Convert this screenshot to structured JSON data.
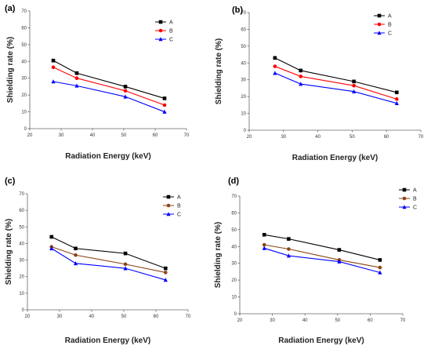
{
  "chart_data": [
    {
      "type": "line",
      "panel_label": "(a)",
      "xlabel": "Radiation Energy (keV)",
      "ylabel": "Shielding rate (%)",
      "xlim": [
        20,
        70
      ],
      "ylim": [
        0,
        70
      ],
      "xticks": [
        "20",
        "30",
        "40",
        "50",
        "60",
        "70"
      ],
      "yticks": [
        "0",
        "10",
        "20",
        "30",
        "40",
        "50",
        "60",
        "70"
      ],
      "x": [
        27.5,
        35,
        50.5,
        63
      ],
      "legend_position": "top-right",
      "grid": false,
      "series": [
        {
          "name": "A",
          "color": "#000000",
          "marker": "square",
          "values": [
            40.5,
            33,
            25,
            18
          ]
        },
        {
          "name": "B",
          "color": "#ff0000",
          "marker": "circle",
          "values": [
            36.5,
            30,
            22.5,
            14
          ]
        },
        {
          "name": "C",
          "color": "#0000ff",
          "marker": "triangle",
          "values": [
            28,
            25.5,
            19,
            10
          ]
        }
      ]
    },
    {
      "type": "line",
      "panel_label": "(b)",
      "xlabel": "Radiation Energy (keV)",
      "ylabel": "Shielding rate (%)",
      "xlim": [
        20,
        70
      ],
      "ylim": [
        0,
        70
      ],
      "xticks": [
        "20",
        "30",
        "40",
        "50",
        "60",
        "70"
      ],
      "yticks": [
        "0",
        "10",
        "20",
        "30",
        "40",
        "50",
        "60",
        "70"
      ],
      "x": [
        27.5,
        35,
        50.5,
        63
      ],
      "legend_position": "top-right",
      "grid": false,
      "series": [
        {
          "name": "A",
          "color": "#000000",
          "marker": "square",
          "values": [
            43,
            35.5,
            29,
            22.5
          ]
        },
        {
          "name": "B",
          "color": "#ff0000",
          "marker": "circle",
          "values": [
            38,
            32,
            26.5,
            18.5
          ]
        },
        {
          "name": "C",
          "color": "#0000ff",
          "marker": "triangle",
          "values": [
            34,
            27.5,
            23,
            16
          ]
        }
      ]
    },
    {
      "type": "line",
      "panel_label": "(c)",
      "xlabel": "Radiation Energy (keV)",
      "ylabel": "Shielding rate (%)",
      "xlim": [
        20,
        70
      ],
      "ylim": [
        0,
        70
      ],
      "xticks": [
        "20",
        "30",
        "40",
        "50",
        "60",
        "70"
      ],
      "yticks": [
        "0",
        "10",
        "20",
        "30",
        "40",
        "50",
        "60",
        "70"
      ],
      "x": [
        27.5,
        35,
        50.5,
        63
      ],
      "legend_position": "top-right",
      "grid": false,
      "series": [
        {
          "name": "A",
          "color": "#000000",
          "marker": "square",
          "values": [
            44,
            37,
            34,
            25
          ]
        },
        {
          "name": "B",
          "color": "#8b4513",
          "marker": "circle",
          "values": [
            38,
            33,
            27.5,
            22.5
          ]
        },
        {
          "name": "C",
          "color": "#0000ff",
          "marker": "triangle",
          "values": [
            37,
            28,
            25,
            18
          ]
        }
      ]
    },
    {
      "type": "line",
      "panel_label": "(d)",
      "xlabel": "Radiation Energy (keV)",
      "ylabel": "Shielding rate (%)",
      "xlim": [
        20,
        70
      ],
      "ylim": [
        0,
        70
      ],
      "xticks": [
        "20",
        "30",
        "40",
        "50",
        "60",
        "70"
      ],
      "yticks": [
        "0",
        "10",
        "20",
        "30",
        "40",
        "50",
        "60",
        "70"
      ],
      "x": [
        27.5,
        35,
        50.5,
        63
      ],
      "legend_position": "top-right",
      "grid": false,
      "series": [
        {
          "name": "A",
          "color": "#000000",
          "marker": "square",
          "values": [
            47,
            44.5,
            38,
            32
          ]
        },
        {
          "name": "B",
          "color": "#8b4513",
          "marker": "circle",
          "values": [
            41,
            38.5,
            32,
            27.5
          ]
        },
        {
          "name": "C",
          "color": "#0000ff",
          "marker": "triangle",
          "values": [
            39,
            34.5,
            31,
            24.5
          ]
        }
      ]
    }
  ]
}
